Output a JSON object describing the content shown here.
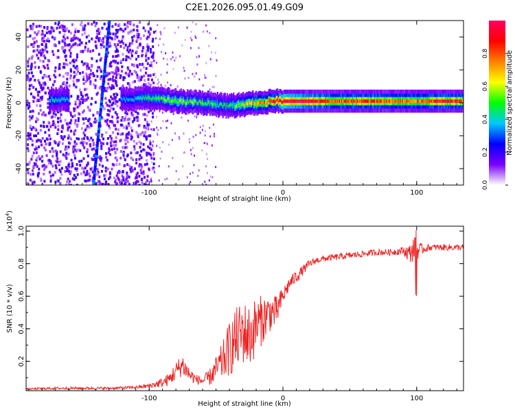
{
  "figure_title": "C2E1.2026.095.01.49.G09",
  "chart_data": [
    {
      "type": "heatmap",
      "title": "C2E1.2026.095.01.49.G09",
      "xlabel": "Height of straight line (km)",
      "ylabel": "Frequency (Hz)",
      "xlim": [
        -192,
        135
      ],
      "ylim": [
        -50,
        50
      ],
      "x_ticks": [
        -100,
        0,
        100
      ],
      "x_tick_labels": [
        "-100",
        "0",
        "100"
      ],
      "y_ticks": [
        -40,
        -20,
        0,
        20,
        40
      ],
      "y_tick_labels": [
        "-40",
        "-20",
        "0",
        "20",
        "40"
      ],
      "ridge": {
        "description_points_x": [
          -170,
          -140,
          -120,
          -100,
          -80,
          -60,
          -40,
          -20,
          -10,
          0,
          20,
          40,
          60,
          80,
          100,
          120,
          135
        ],
        "frequency_hz": [
          2,
          1,
          2,
          3,
          1,
          0,
          -2,
          0,
          1,
          1,
          1,
          1,
          1,
          1,
          1,
          1,
          1
        ],
        "amplitude": [
          0.4,
          0.3,
          0.35,
          0.45,
          0.55,
          0.5,
          0.45,
          0.75,
          0.8,
          1.0,
          0.95,
          0.8,
          0.85,
          0.8,
          0.75,
          0.9,
          0.8
        ]
      },
      "diagonal_trace": {
        "x_start": -130,
        "f_start": 50,
        "x_end": -142,
        "f_end": -50
      },
      "colorbar": {
        "label": "Normalized spectral amplitude",
        "range": [
          0,
          1
        ],
        "ticks": [
          0.0,
          0.2,
          0.4,
          0.6,
          0.8
        ],
        "tick_labels": [
          "0.0",
          "0.2",
          "0.4",
          "0.6",
          "0.8"
        ],
        "colors": [
          "#ffffff",
          "#7a00ff",
          "#0000ff",
          "#00c8ff",
          "#00ff00",
          "#ffff00",
          "#ff8000",
          "#ff0000",
          "#ff0060"
        ]
      }
    },
    {
      "type": "line",
      "xlabel": "Height of straight line (km)",
      "ylabel": "SNR (10 * v/v)",
      "y_multiplier_label": "(x10",
      "y_multiplier_exp": "4",
      "xlim": [
        -192,
        135
      ],
      "ylim": [
        0.02,
        1.03
      ],
      "x_ticks": [
        -100,
        0,
        100
      ],
      "x_tick_labels": [
        "-100",
        "0",
        "100"
      ],
      "y_ticks": [
        0.2,
        0.4,
        0.6,
        0.8,
        1.0
      ],
      "y_tick_labels": [
        "0.2",
        "0.4",
        "0.6",
        "0.8",
        "1.0"
      ],
      "color": "#ee2222",
      "series": [
        {
          "name": "SNR",
          "x": [
            -192,
            -170,
            -150,
            -130,
            -110,
            -100,
            -90,
            -85,
            -80,
            -75,
            -70,
            -65,
            -60,
            -55,
            -50,
            -45,
            -40,
            -35,
            -30,
            -25,
            -20,
            -15,
            -10,
            -5,
            0,
            5,
            10,
            15,
            20,
            25,
            30,
            40,
            50,
            60,
            70,
            80,
            90,
            95,
            98,
            100,
            105,
            110,
            120,
            135
          ],
          "y": [
            0.03,
            0.035,
            0.035,
            0.035,
            0.04,
            0.05,
            0.07,
            0.09,
            0.14,
            0.18,
            0.12,
            0.09,
            0.08,
            0.1,
            0.15,
            0.2,
            0.28,
            0.33,
            0.38,
            0.35,
            0.42,
            0.46,
            0.5,
            0.5,
            0.6,
            0.68,
            0.72,
            0.76,
            0.8,
            0.82,
            0.83,
            0.84,
            0.85,
            0.86,
            0.87,
            0.87,
            0.88,
            0.86,
            0.9,
            0.88,
            0.89,
            0.9,
            0.9,
            0.9
          ],
          "noise": [
            0.005,
            0.008,
            0.008,
            0.008,
            0.01,
            0.015,
            0.03,
            0.04,
            0.06,
            0.07,
            0.05,
            0.03,
            0.03,
            0.05,
            0.08,
            0.12,
            0.17,
            0.2,
            0.2,
            0.2,
            0.18,
            0.15,
            0.12,
            0.1,
            0.06,
            0.04,
            0.04,
            0.03,
            0.025,
            0.02,
            0.02,
            0.02,
            0.02,
            0.02,
            0.02,
            0.02,
            0.025,
            0.06,
            0.08,
            0.06,
            0.025,
            0.02,
            0.02,
            0.02
          ]
        }
      ]
    }
  ]
}
